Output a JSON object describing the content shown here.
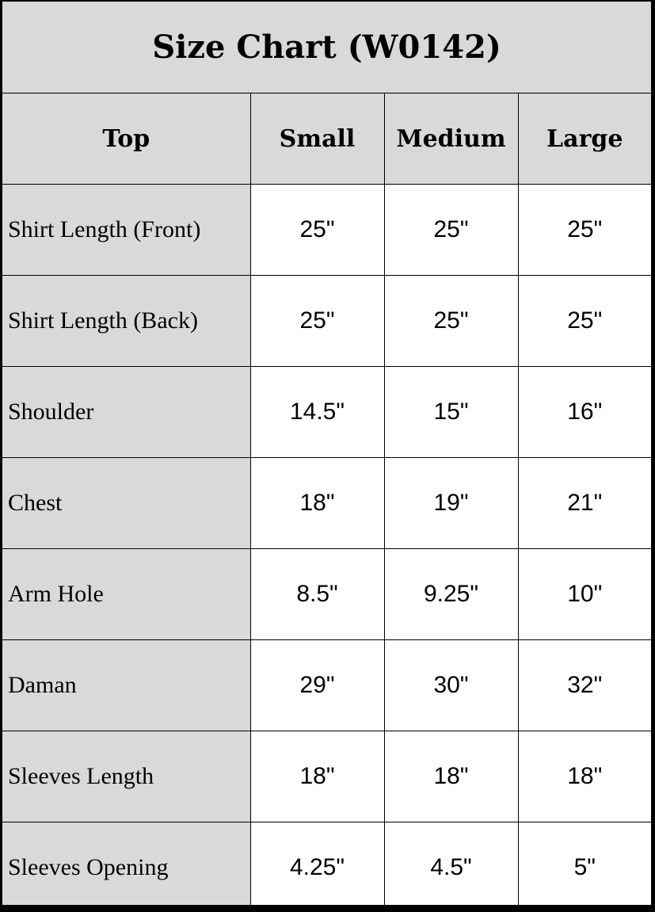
{
  "title": "Size Chart (W0142)",
  "colors": {
    "header_bg": "#d9d9d9",
    "border": "#000000",
    "cell_bg": "#ffffff"
  },
  "columns": [
    "Top",
    "Small",
    "Medium",
    "Large"
  ],
  "rows": [
    {
      "label": "Shirt Length (Front)",
      "values": [
        "25\"",
        "25\"",
        "25\""
      ]
    },
    {
      "label": "Shirt Length (Back)",
      "values": [
        "25\"",
        "25\"",
        "25\""
      ]
    },
    {
      "label": "Shoulder",
      "values": [
        "14.5\"",
        "15\"",
        "16\""
      ]
    },
    {
      "label": "Chest",
      "values": [
        "18\"",
        "19\"",
        "21\""
      ]
    },
    {
      "label": "Arm Hole",
      "values": [
        "8.5\"",
        "9.25\"",
        "10\""
      ]
    },
    {
      "label": "Daman",
      "values": [
        "29\"",
        "30\"",
        "32\""
      ]
    },
    {
      "label": "Sleeves Length",
      "values": [
        "18\"",
        "18\"",
        "18\""
      ]
    },
    {
      "label": "Sleeves Opening",
      "values": [
        "4.25\"",
        "4.5\"",
        "5\""
      ]
    }
  ]
}
